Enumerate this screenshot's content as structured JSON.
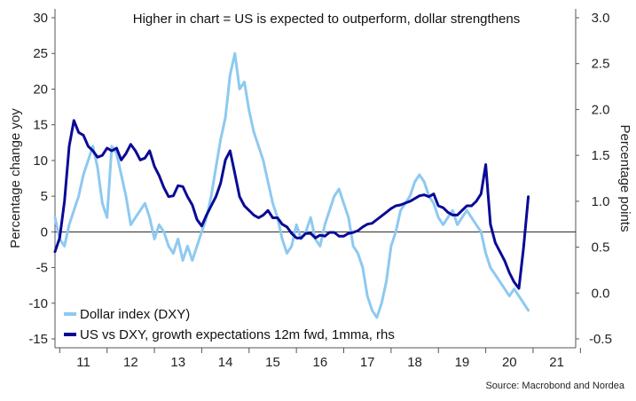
{
  "chart_data": {
    "type": "line",
    "title": "Higher in chart = US is expected to outperform, dollar strengthens",
    "ylabel": "Percentage change yoy",
    "y2label": "Percentage points",
    "source": "Source: Macrobond and Nordea",
    "ylim": [
      -15,
      30
    ],
    "y2lim": [
      -0.5,
      3.0
    ],
    "xlim": [
      2010.9,
      2021.9
    ],
    "y_ticks": [
      "30",
      "25",
      "20",
      "15",
      "10",
      "5",
      "0",
      "-5",
      "-10",
      "-15"
    ],
    "y2_ticks": [
      "3.0",
      "2.5",
      "2.0",
      "1.5",
      "1.0",
      "0.5",
      "0.0",
      "-0.5"
    ],
    "x_ticks": [
      "11",
      "12",
      "13",
      "14",
      "15",
      "16",
      "17",
      "18",
      "19",
      "20",
      "21"
    ],
    "grid": false,
    "legend_position": "bottom-left",
    "colors": {
      "dxy": "#8ec9f0",
      "growth": "#0a0a96",
      "zero_line": "#222222"
    },
    "series": [
      {
        "name": "Dollar index (DXY)",
        "axis": "left",
        "x": [
          2010.9,
          2011.0,
          2011.1,
          2011.2,
          2011.3,
          2011.4,
          2011.5,
          2011.6,
          2011.7,
          2011.8,
          2011.9,
          2012.0,
          2012.1,
          2012.2,
          2012.3,
          2012.4,
          2012.5,
          2012.6,
          2012.7,
          2012.8,
          2012.9,
          2013.0,
          2013.1,
          2013.2,
          2013.3,
          2013.4,
          2013.5,
          2013.6,
          2013.7,
          2013.8,
          2013.9,
          2014.0,
          2014.1,
          2014.2,
          2014.3,
          2014.4,
          2014.5,
          2014.6,
          2014.7,
          2014.8,
          2014.9,
          2015.0,
          2015.1,
          2015.2,
          2015.3,
          2015.4,
          2015.5,
          2015.6,
          2015.7,
          2015.8,
          2015.9,
          2016.0,
          2016.1,
          2016.2,
          2016.3,
          2016.4,
          2016.5,
          2016.6,
          2016.7,
          2016.8,
          2016.9,
          2017.0,
          2017.1,
          2017.2,
          2017.3,
          2017.4,
          2017.5,
          2017.6,
          2017.7,
          2017.8,
          2017.9,
          2018.0,
          2018.1,
          2018.2,
          2018.3,
          2018.4,
          2018.5,
          2018.6,
          2018.7,
          2018.8,
          2018.9,
          2019.0,
          2019.1,
          2019.2,
          2019.3,
          2019.4,
          2019.5,
          2019.6,
          2019.7,
          2019.8,
          2019.9,
          2020.0,
          2020.1,
          2020.2,
          2020.3,
          2020.4,
          2020.5,
          2020.6,
          2020.7,
          2020.8,
          2020.9
        ],
        "values": [
          2,
          -1,
          -2,
          1,
          3,
          5,
          8,
          10,
          12,
          9,
          4,
          2,
          12,
          11,
          8,
          5,
          1,
          2,
          3,
          4,
          2,
          -1,
          1,
          0,
          -2,
          -3,
          -1,
          -4,
          -2,
          -4,
          -2,
          0,
          2,
          5,
          9,
          13,
          16,
          22,
          25,
          20,
          21,
          17,
          14,
          12,
          10,
          7,
          4,
          2,
          -1,
          -3,
          -2,
          1,
          -1,
          0,
          2,
          -1,
          -2,
          1,
          3,
          5,
          6,
          4,
          2,
          -2,
          -3,
          -5,
          -9,
          -11,
          -12,
          -10,
          -7,
          -2,
          0,
          3,
          4,
          5,
          7,
          8,
          7,
          5,
          4,
          2,
          1,
          2,
          3,
          1,
          2,
          3,
          2,
          1,
          0,
          -3,
          -5,
          -6,
          -7,
          -8,
          -9,
          -8,
          -9,
          -10,
          -11
        ]
      },
      {
        "name": "US vs DXY, growth expectations 12m fwd, 1mma, rhs",
        "axis": "right",
        "x": [
          2010.9,
          2011.0,
          2011.1,
          2011.2,
          2011.3,
          2011.4,
          2011.5,
          2011.6,
          2011.7,
          2011.8,
          2011.9,
          2012.0,
          2012.1,
          2012.2,
          2012.3,
          2012.4,
          2012.5,
          2012.6,
          2012.7,
          2012.8,
          2012.9,
          2013.0,
          2013.1,
          2013.2,
          2013.3,
          2013.4,
          2013.5,
          2013.6,
          2013.7,
          2013.8,
          2013.9,
          2014.0,
          2014.1,
          2014.2,
          2014.3,
          2014.4,
          2014.5,
          2014.6,
          2014.7,
          2014.8,
          2014.9,
          2015.0,
          2015.1,
          2015.2,
          2015.3,
          2015.4,
          2015.5,
          2015.6,
          2015.7,
          2015.8,
          2015.9,
          2016.0,
          2016.1,
          2016.2,
          2016.3,
          2016.4,
          2016.5,
          2016.6,
          2016.7,
          2016.8,
          2016.9,
          2017.0,
          2017.1,
          2017.2,
          2017.3,
          2017.4,
          2017.5,
          2017.6,
          2017.7,
          2017.8,
          2017.9,
          2018.0,
          2018.1,
          2018.2,
          2018.3,
          2018.4,
          2018.5,
          2018.6,
          2018.7,
          2018.8,
          2018.9,
          2019.0,
          2019.1,
          2019.2,
          2019.3,
          2019.4,
          2019.5,
          2019.6,
          2019.7,
          2019.8,
          2019.9,
          2020.0,
          2020.1,
          2020.2,
          2020.3,
          2020.4,
          2020.5,
          2020.6,
          2020.7,
          2020.8,
          2020.9
        ],
        "values": [
          0.45,
          0.6,
          1.0,
          1.6,
          1.88,
          1.75,
          1.72,
          1.6,
          1.55,
          1.48,
          1.5,
          1.58,
          1.55,
          1.58,
          1.45,
          1.52,
          1.62,
          1.55,
          1.45,
          1.47,
          1.55,
          1.38,
          1.28,
          1.15,
          1.05,
          1.06,
          1.17,
          1.16,
          1.05,
          0.96,
          0.8,
          0.73,
          0.85,
          0.95,
          1.05,
          1.2,
          1.45,
          1.55,
          1.3,
          1.05,
          0.95,
          0.9,
          0.85,
          0.82,
          0.85,
          0.9,
          0.82,
          0.82,
          0.75,
          0.72,
          0.65,
          0.6,
          0.6,
          0.65,
          0.65,
          0.6,
          0.63,
          0.62,
          0.66,
          0.66,
          0.62,
          0.62,
          0.65,
          0.66,
          0.68,
          0.72,
          0.75,
          0.76,
          0.8,
          0.84,
          0.88,
          0.92,
          0.95,
          0.96,
          0.98,
          1.0,
          1.03,
          1.06,
          1.07,
          1.05,
          1.08,
          0.95,
          0.93,
          0.88,
          0.85,
          0.85,
          0.9,
          0.95,
          0.95,
          1.0,
          1.08,
          1.4,
          0.75,
          0.55,
          0.45,
          0.35,
          0.22,
          0.12,
          0.05,
          0.5,
          1.05
        ]
      }
    ]
  }
}
